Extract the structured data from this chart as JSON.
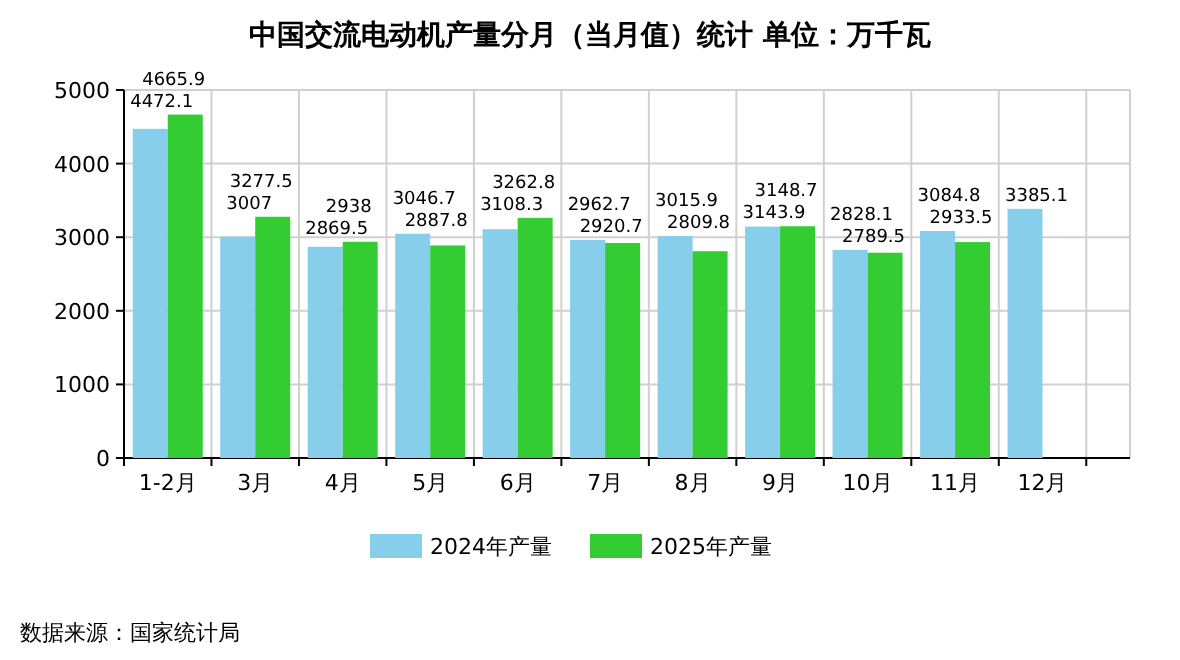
{
  "chart_data": {
    "type": "bar",
    "title": "中国交流电动机产量分月（当月值）统计 单位：万千瓦",
    "categories": [
      "1-2月",
      "3月",
      "4月",
      "5月",
      "6月",
      "7月",
      "8月",
      "9月",
      "10月",
      "11月",
      "12月"
    ],
    "series": [
      {
        "name": "2024年产量",
        "color": "#87ceeb",
        "values": [
          4472.1,
          3007,
          2869.5,
          3046.7,
          3108.3,
          2962.7,
          3015.9,
          3143.9,
          2828.1,
          3084.8,
          3385.1
        ]
      },
      {
        "name": "2025年产量",
        "color": "#33cc33",
        "values": [
          4665.9,
          3277.5,
          2938,
          2887.8,
          3262.8,
          2920.7,
          2809.8,
          3148.7,
          2789.5,
          2933.5,
          null
        ]
      }
    ],
    "ylim": [
      0,
      5000
    ],
    "yticks": [
      0,
      1000,
      2000,
      3000,
      4000,
      5000
    ],
    "grid": true,
    "data_labels": true,
    "legend": "bottom",
    "annotations": [
      "数据来源：国家统计局"
    ]
  }
}
